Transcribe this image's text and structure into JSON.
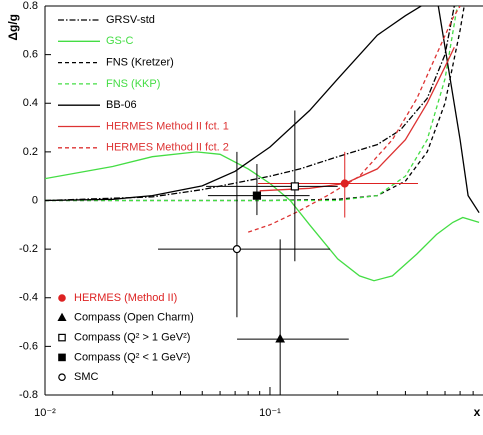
{
  "chart_data": {
    "type": "line",
    "ylabel": "Δg/g",
    "xlabel": "x",
    "xscale": "log",
    "xlim": [
      0.01,
      0.885
    ],
    "ylim": [
      -0.8,
      0.8
    ],
    "xticks": [
      {
        "value": 0.01,
        "label": "10⁻²"
      },
      {
        "value": 0.1,
        "label": "10⁻¹"
      }
    ],
    "xminorticks": [
      0.02,
      0.03,
      0.04,
      0.05,
      0.06,
      0.07,
      0.08,
      0.09,
      0.2,
      0.3,
      0.4,
      0.5,
      0.6,
      0.7,
      0.8
    ],
    "yticks": [
      0.8,
      0.6,
      0.4,
      0.2,
      0,
      -0.2,
      -0.4,
      -0.6,
      -0.8
    ],
    "legend": "upper left",
    "points_legend": "lower left",
    "series": [
      {
        "name": "GRSV-std",
        "color": "#000000",
        "dash": "dashdot",
        "x": [
          0.01,
          0.03,
          0.05,
          0.1,
          0.136,
          0.2,
          0.3,
          0.38,
          0.5,
          0.6,
          0.66
        ],
        "values": [
          0.0,
          0.015,
          0.045,
          0.1,
          0.13,
          0.18,
          0.23,
          0.29,
          0.42,
          0.6,
          0.8
        ]
      },
      {
        "name": "GS-C",
        "color": "#44dd44",
        "dash": "solid",
        "x": [
          0.01,
          0.02,
          0.03,
          0.047,
          0.06,
          0.08,
          0.1,
          0.123,
          0.15,
          0.2,
          0.25,
          0.29,
          0.35,
          0.45,
          0.55,
          0.65,
          0.72,
          0.85
        ],
        "values": [
          0.09,
          0.14,
          0.18,
          0.2,
          0.19,
          0.13,
          0.07,
          0.0,
          -0.1,
          -0.24,
          -0.31,
          -0.33,
          -0.31,
          -0.22,
          -0.14,
          -0.09,
          -0.07,
          -0.09
        ]
      },
      {
        "name": "FNS (Kretzer)",
        "color": "#000000",
        "dash": "dash",
        "x": [
          0.01,
          0.1,
          0.2,
          0.3,
          0.4,
          0.5,
          0.6,
          0.7,
          0.73
        ],
        "values": [
          0.0,
          0.0,
          0.005,
          0.02,
          0.08,
          0.2,
          0.4,
          0.7,
          0.8
        ]
      },
      {
        "name": "FNS (KKP)",
        "color": "#44dd44",
        "dash": "dash",
        "x": [
          0.01,
          0.2,
          0.3,
          0.4,
          0.5,
          0.6,
          0.68
        ],
        "values": [
          0.0,
          0.0,
          0.02,
          0.1,
          0.25,
          0.5,
          0.8
        ]
      },
      {
        "name": "BB-06",
        "color": "#000000",
        "dash": "solid",
        "x": [
          0.01,
          0.02,
          0.03,
          0.05,
          0.07,
          0.1,
          0.15,
          0.2,
          0.3,
          0.4,
          0.47,
          0.52,
          0.56,
          0.62,
          0.7,
          0.76,
          0.85
        ],
        "values": [
          0.0,
          0.005,
          0.02,
          0.06,
          0.12,
          0.22,
          0.37,
          0.5,
          0.68,
          0.76,
          0.8,
          0.85,
          0.8,
          0.55,
          0.25,
          0.02,
          -0.05
        ]
      },
      {
        "name": "HERMES Method II fct. 1",
        "color": "#dd3333",
        "dash": "solid",
        "x": [
          0.09,
          0.15,
          0.215,
          0.3,
          0.4,
          0.5,
          0.6,
          0.66
        ],
        "values": [
          0.04,
          0.05,
          0.07,
          0.13,
          0.25,
          0.4,
          0.55,
          0.63
        ]
      },
      {
        "name": "HERMES Method II fct. 2",
        "color": "#dd3333",
        "dash": "dash",
        "x": [
          0.08,
          0.1,
          0.13,
          0.18,
          0.25,
          0.35,
          0.45,
          0.55,
          0.65,
          0.7
        ],
        "values": [
          -0.13,
          -0.1,
          -0.05,
          0.02,
          0.1,
          0.25,
          0.42,
          0.6,
          0.75,
          0.8
        ]
      }
    ],
    "points": [
      {
        "name": "HERMES (Method II)",
        "color": "#dd2222",
        "marker": "circle",
        "filled": true,
        "x": 0.215,
        "y": 0.07,
        "x_range": [
          0.0885,
          0.455
        ],
        "y_range": [
          -0.07,
          0.2
        ]
      },
      {
        "name": "Compass (Open Charm)",
        "color": "#000000",
        "marker": "triangle",
        "filled": true,
        "x": 0.111,
        "y": -0.57,
        "x_range": [
          0.0714,
          0.224
        ],
        "y_range": [
          -0.98,
          -0.16
        ]
      },
      {
        "name": "Compass (Q² > 1 GeV²)",
        "color": "#000000",
        "marker": "square",
        "filled": false,
        "x": 0.129,
        "y": 0.058,
        "x_range": [
          0.052,
          0.2
        ],
        "y_range": [
          -0.25,
          0.37
        ]
      },
      {
        "name": "Compass (Q² < 1 GeV²)",
        "color": "#000000",
        "marker": "square",
        "filled": true,
        "x": 0.0875,
        "y": 0.02,
        "x_range": [
          0.053,
          0.15
        ],
        "y_range": [
          -0.06,
          0.15
        ]
      },
      {
        "name": "SMC",
        "color": "#000000",
        "marker": "circle",
        "filled": false,
        "x": 0.0713,
        "y": -0.2,
        "x_range": [
          0.0318,
          0.185
        ],
        "y_range": [
          -0.48,
          0.2
        ]
      }
    ]
  }
}
